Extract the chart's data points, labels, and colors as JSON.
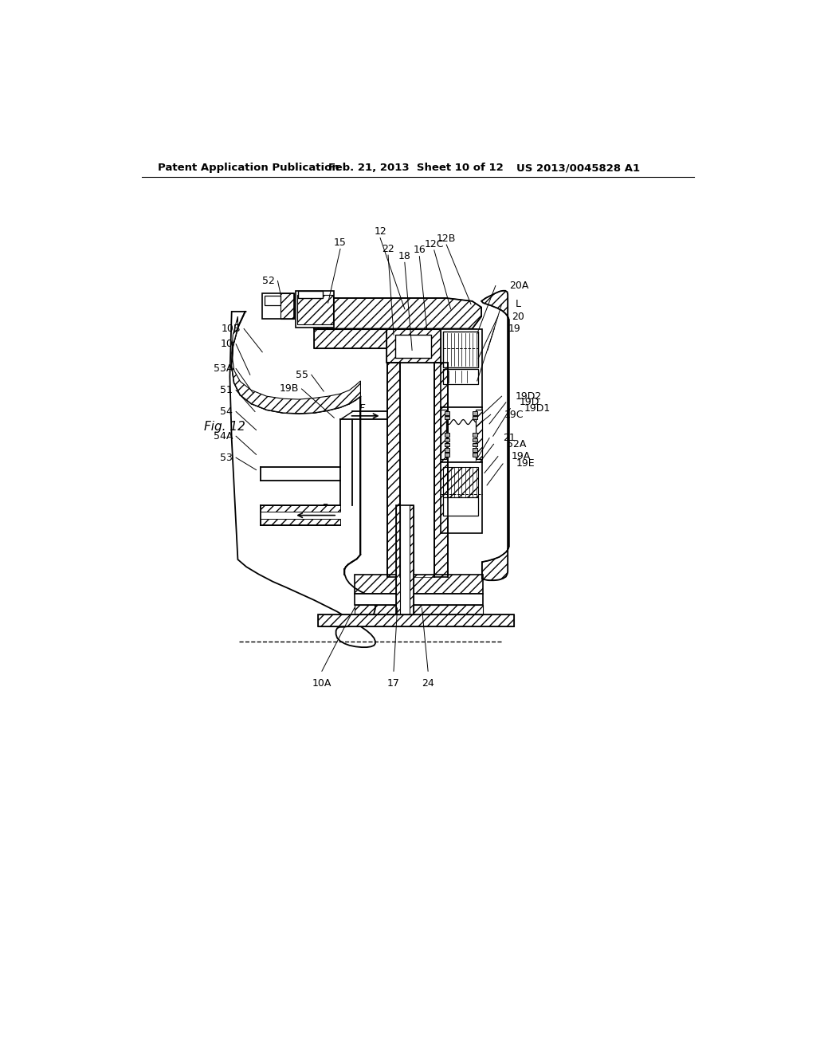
{
  "bg_color": "#ffffff",
  "line_color": "#000000",
  "header_left": "Patent Application Publication",
  "header_mid": "Feb. 21, 2013  Sheet 10 of 12",
  "header_right": "US 2013/0045828 A1",
  "fig_label": "Fig. 12",
  "labels_top": [
    [
      450,
      182,
      490,
      298,
      "12"
    ],
    [
      385,
      200,
      365,
      288,
      "15"
    ],
    [
      463,
      210,
      472,
      340,
      "22"
    ],
    [
      490,
      222,
      502,
      365,
      "18"
    ],
    [
      514,
      212,
      526,
      330,
      "16"
    ],
    [
      538,
      202,
      565,
      298,
      "12C"
    ],
    [
      558,
      193,
      598,
      290,
      "12B"
    ]
  ],
  "labels_right": [
    [
      638,
      260,
      608,
      338,
      "20A"
    ],
    [
      648,
      290,
      625,
      365,
      "L"
    ],
    [
      642,
      310,
      610,
      378,
      "20"
    ],
    [
      636,
      330,
      608,
      415,
      "19"
    ],
    [
      648,
      440,
      618,
      468,
      "19D2"
    ],
    [
      655,
      450,
      628,
      485,
      "19D"
    ],
    [
      662,
      460,
      634,
      505,
      "19D1"
    ],
    [
      630,
      470,
      608,
      488,
      "19C"
    ],
    [
      628,
      508,
      606,
      545,
      "21"
    ],
    [
      635,
      518,
      612,
      548,
      "52A"
    ],
    [
      642,
      538,
      620,
      565,
      "19A"
    ],
    [
      650,
      550,
      624,
      585,
      "19E"
    ]
  ],
  "labels_left": [
    [
      228,
      330,
      258,
      368,
      "10B"
    ],
    [
      215,
      355,
      238,
      405,
      "10"
    ],
    [
      215,
      395,
      243,
      435,
      "53A"
    ],
    [
      215,
      430,
      246,
      465,
      "51"
    ],
    [
      338,
      405,
      358,
      432,
      "55"
    ],
    [
      322,
      428,
      375,
      475,
      "19B"
    ],
    [
      215,
      465,
      248,
      495,
      "54"
    ],
    [
      215,
      505,
      248,
      535,
      "54A"
    ],
    [
      215,
      540,
      248,
      560,
      "53"
    ],
    [
      283,
      252,
      288,
      275,
      "52"
    ]
  ],
  "labels_bottom": [
    [
      355,
      888,
      408,
      785,
      "10A"
    ],
    [
      472,
      888,
      478,
      785,
      "17"
    ],
    [
      528,
      888,
      518,
      785,
      "24"
    ]
  ]
}
